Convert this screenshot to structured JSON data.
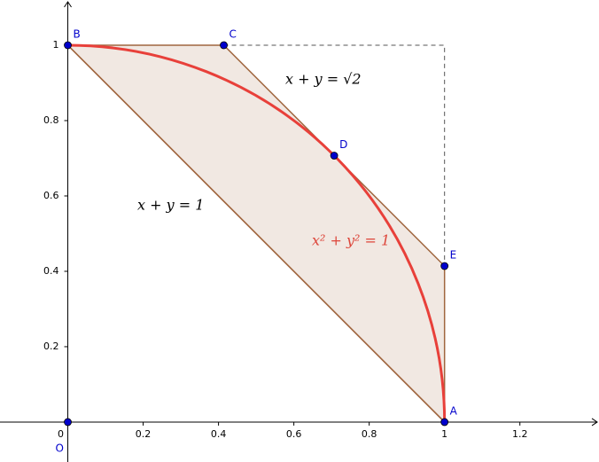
{
  "chart_data": {
    "type": "scatter",
    "points": [
      {
        "name": "O",
        "x": 0,
        "y": 0
      },
      {
        "name": "A",
        "x": 1,
        "y": 0
      },
      {
        "name": "B",
        "x": 0,
        "y": 1
      },
      {
        "name": "C",
        "x": 0.414,
        "y": 1
      },
      {
        "name": "D",
        "x": 0.707,
        "y": 0.707
      },
      {
        "name": "E",
        "x": 1,
        "y": 0.414
      }
    ],
    "annotations": [
      "x + y = √2",
      "x + y = 1",
      "x² + y² = 1"
    ],
    "xlim": [
      -0.18,
      1.41
    ],
    "ylim": [
      -0.106,
      1.12
    ],
    "xticks": [
      0,
      0.2,
      0.4,
      0.6,
      0.8,
      1,
      1.2
    ],
    "yticks": [
      0.2,
      0.4,
      0.6,
      0.8,
      1
    ],
    "point_color": "#0000cc",
    "polygon_color": "#a0663f",
    "circle_color": "#e8403a"
  }
}
